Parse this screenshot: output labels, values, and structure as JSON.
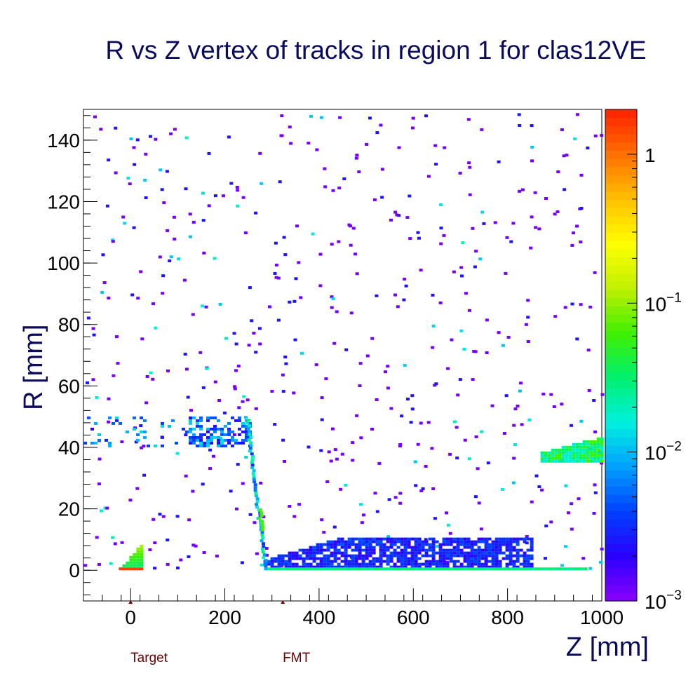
{
  "chart_data": {
    "type": "heatmap",
    "title": "R vs Z vertex of tracks in region 1 for clas12VE",
    "xlabel": "Z [mm]",
    "ylabel": "R [mm]",
    "xlim": [
      -100,
      1000
    ],
    "ylim": [
      -10,
      150
    ],
    "x_ticks": [
      0,
      200,
      400,
      600,
      800,
      1000
    ],
    "y_ticks": [
      0,
      20,
      40,
      60,
      80,
      100,
      120,
      140
    ],
    "zscale": "log",
    "zlim": [
      0.001,
      2
    ],
    "z_ticks": [
      {
        "value": 0.001,
        "label": "10",
        "sup": "−3"
      },
      {
        "value": 0.01,
        "label": "10",
        "sup": "−2"
      },
      {
        "value": 0.1,
        "label": "10",
        "sup": "−1"
      },
      {
        "value": 1,
        "label": "1",
        "sup": ""
      }
    ],
    "palette": [
      "#8c00ff",
      "#2a00ff",
      "#0040ff",
      "#00a0ff",
      "#00f0e0",
      "#00f070",
      "#40f000",
      "#c0f000",
      "#ffff00",
      "#ffc000",
      "#ff7000",
      "#ff2000"
    ],
    "markers": [
      {
        "label": "Target",
        "z": 0
      },
      {
        "label": "FMT",
        "z": 323
      }
    ],
    "regions": [
      {
        "name": "target",
        "z": [
          -25,
          25
        ],
        "r": [
          0,
          9
        ],
        "level": "medium",
        "note": "red row at R=0, green cone above"
      },
      {
        "name": "barrel",
        "z": [
          280,
          850
        ],
        "r": [
          0,
          11
        ],
        "level": "low"
      },
      {
        "name": "beamline",
        "z": [
          280,
          965
        ],
        "r": [
          0,
          1
        ],
        "level": "medium"
      },
      {
        "name": "upstream-shell",
        "z": [
          -100,
          250
        ],
        "r": [
          40,
          50
        ],
        "level": "low"
      },
      {
        "name": "wall",
        "z": [
          240,
          285
        ],
        "r": [
          0,
          50
        ],
        "level": "medium"
      },
      {
        "name": "downstream-cone",
        "z": [
          870,
          1000
        ],
        "r": [
          35,
          43
        ],
        "level": "medium"
      }
    ]
  }
}
